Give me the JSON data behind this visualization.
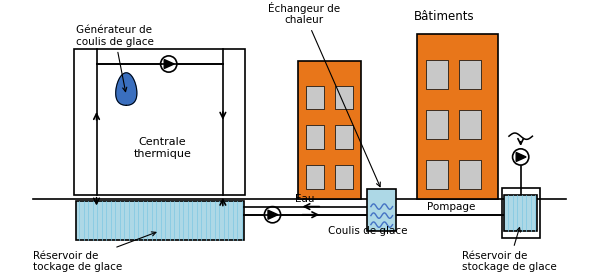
{
  "bg_color": "#ffffff",
  "line_color": "#000000",
  "orange_color": "#E8761A",
  "light_blue": "#ADD8E6",
  "blue_stripe": "#7EC8E3",
  "blue_dark": "#3A6FBF",
  "gray_window": "#C8C8C8",
  "labels": {
    "generateur": "Générateur de\ncoulis de glace",
    "echangeur": "Échangeur de\nchaleur",
    "batiments": "Bâtiments",
    "centrale": "Centrale\nthermique",
    "reservoir_left": "Réservoir de\ntockage de glace",
    "reservoir_right": "Réservoir de\nstockage de glace",
    "coulis": "Coulis de glace",
    "eau": "Eau",
    "pompage": "Pompage"
  },
  "figsize": [
    6.0,
    2.74
  ],
  "dpi": 100
}
